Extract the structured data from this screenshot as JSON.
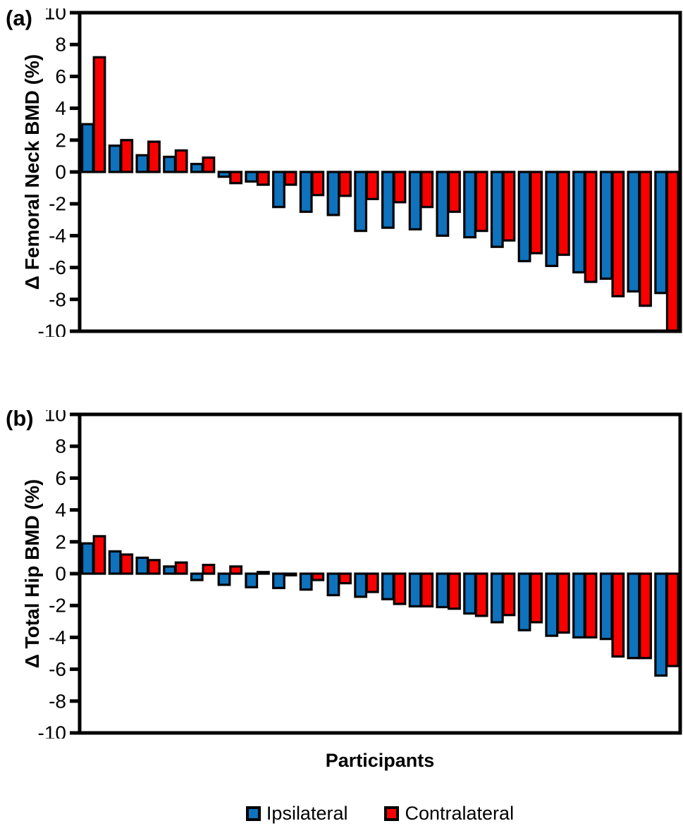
{
  "figure": {
    "panel_a": {
      "label": "(a)",
      "y_axis_title": "Δ Femoral Neck BMD (%)"
    },
    "panel_b": {
      "label": "(b)",
      "y_axis_title": "Δ Total Hip BMD (%)"
    },
    "x_axis_title": "Participants",
    "legend": [
      {
        "label": "Ipsilateral",
        "color": "#0E72BD"
      },
      {
        "label": "Contralateral",
        "color": "#F80000"
      }
    ]
  },
  "chart_data": [
    {
      "type": "bar",
      "panel": "a",
      "ylabel": "Δ Femoral Neck BMD (%)",
      "xlabel": "Participants",
      "ylim": [
        -10,
        10
      ],
      "ytick_step": 2,
      "ytick_labels": [
        "10",
        "8",
        "6",
        "4",
        "2",
        "0",
        "-2",
        "-4",
        "-6",
        "-8",
        "-10"
      ],
      "n_participants": 22,
      "grid": false,
      "legend_position": "bottom",
      "series": [
        {
          "name": "Ipsilateral",
          "color": "#0E72BD",
          "values": [
            3.0,
            1.65,
            1.05,
            0.95,
            0.5,
            -0.3,
            -0.6,
            -2.2,
            -2.5,
            -2.7,
            -3.7,
            -3.5,
            -3.6,
            -4.0,
            -4.1,
            -4.7,
            -5.6,
            -5.9,
            -6.3,
            -6.7,
            -7.5,
            -7.6
          ]
        },
        {
          "name": "Contralateral",
          "color": "#F80000",
          "values": [
            7.2,
            2.0,
            1.9,
            1.35,
            0.9,
            -0.7,
            -0.8,
            -0.8,
            -1.45,
            -1.5,
            -1.7,
            -1.9,
            -2.2,
            -2.5,
            -3.7,
            -4.3,
            -5.1,
            -5.2,
            -6.9,
            -7.8,
            -8.4,
            -10.0
          ]
        }
      ]
    },
    {
      "type": "bar",
      "panel": "b",
      "ylabel": "Δ Total Hip BMD (%)",
      "xlabel": "Participants",
      "ylim": [
        -10,
        10
      ],
      "ytick_step": 2,
      "ytick_labels": [
        "10",
        "8",
        "6",
        "4",
        "2",
        "0",
        "-2",
        "-4",
        "-6",
        "-8",
        "-10"
      ],
      "n_participants": 22,
      "grid": false,
      "legend_position": "bottom",
      "series": [
        {
          "name": "Ipsilateral",
          "color": "#0E72BD",
          "values": [
            1.9,
            1.4,
            1.0,
            0.45,
            -0.4,
            -0.7,
            -0.85,
            -0.9,
            -1.0,
            -1.35,
            -1.45,
            -1.6,
            -2.05,
            -2.1,
            -2.5,
            -3.05,
            -3.55,
            -3.9,
            -4.0,
            -4.1,
            -5.3,
            -6.4
          ]
        },
        {
          "name": "Contralateral",
          "color": "#F80000",
          "values": [
            2.35,
            1.2,
            0.85,
            0.7,
            0.55,
            0.45,
            0.1,
            -0.1,
            -0.4,
            -0.6,
            -1.15,
            -1.9,
            -2.05,
            -2.2,
            -2.65,
            -2.6,
            -3.05,
            -3.7,
            -4.0,
            -5.2,
            -5.3,
            -5.8
          ]
        }
      ]
    }
  ]
}
